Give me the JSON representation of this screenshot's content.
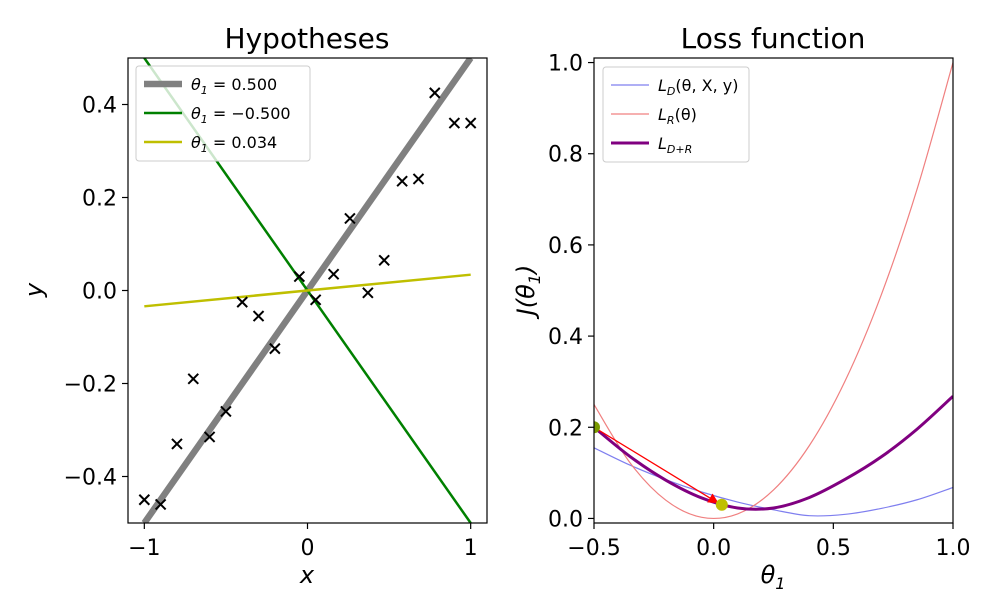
{
  "chart_data": [
    {
      "type": "scatter",
      "title": "Hypotheses",
      "xlabel": "x",
      "ylabel": "y",
      "xlim": [
        -1.1,
        1.1
      ],
      "ylim": [
        -0.5,
        0.5
      ],
      "xticks": [
        -1,
        0,
        1
      ],
      "yticks": [
        -0.4,
        -0.2,
        0.0,
        0.2,
        0.4
      ],
      "xtick_labels": [
        "−1",
        "0",
        "1"
      ],
      "ytick_labels": [
        "−0.4",
        "−0.2",
        "0.0",
        "0.2",
        "0.4"
      ],
      "legend_position": "top-left",
      "points": [
        [
          -1.0,
          -0.45
        ],
        [
          -0.9,
          -0.46
        ],
        [
          -0.8,
          -0.33
        ],
        [
          -0.7,
          -0.19
        ],
        [
          -0.6,
          -0.315
        ],
        [
          -0.5,
          -0.26
        ],
        [
          -0.4,
          -0.025
        ],
        [
          -0.3,
          -0.055
        ],
        [
          -0.2,
          -0.125
        ],
        [
          -0.05,
          0.03
        ],
        [
          0.05,
          -0.02
        ],
        [
          0.16,
          0.035
        ],
        [
          0.26,
          0.155
        ],
        [
          0.37,
          -0.005
        ],
        [
          0.47,
          0.065
        ],
        [
          0.58,
          0.235
        ],
        [
          0.68,
          0.24
        ],
        [
          0.78,
          0.425
        ],
        [
          0.9,
          0.36
        ],
        [
          1.0,
          0.36
        ]
      ],
      "series": [
        {
          "name": "θ₁ = 0.500",
          "name_main": "θ",
          "name_sub": "1",
          "name_rest": " = 0.500",
          "slope": 0.5,
          "color": "#808080",
          "width": 6.5
        },
        {
          "name": "θ₁ = −0.500",
          "name_main": "θ",
          "name_sub": "1",
          "name_rest": " = −0.500",
          "slope": -0.5,
          "color": "#008000",
          "width": 2.5
        },
        {
          "name": "θ₁ = 0.034",
          "name_main": "θ",
          "name_sub": "1",
          "name_rest": " = 0.034",
          "slope": 0.034,
          "color": "#bfbf00",
          "width": 2.5
        }
      ]
    },
    {
      "type": "line",
      "title": "Loss function",
      "xlabel": "θ",
      "xlabel_sub": "1",
      "ylabel": "J(θ₁)",
      "ylabel_main": "J(θ",
      "ylabel_sub": "1",
      "ylabel_close": ")",
      "xlim": [
        -0.5,
        1.0
      ],
      "ylim": [
        -0.01,
        1.01
      ],
      "xticks": [
        -0.5,
        0.0,
        0.5,
        1.0
      ],
      "yticks": [
        0.0,
        0.2,
        0.4,
        0.6,
        0.8,
        1.0
      ],
      "xtick_labels": [
        "−0.5",
        "0.0",
        "0.5",
        "1.0"
      ],
      "ytick_labels": [
        "0.0",
        "0.2",
        "0.4",
        "0.6",
        "0.8",
        "1.0"
      ],
      "legend_position": "top-left",
      "series": [
        {
          "name": "L_D(θ, X, y)",
          "name_main": "L",
          "name_sub": "D",
          "name_rest": "(θ, X, y)",
          "color": "#7f7fef",
          "width": 1.2,
          "x": [
            -0.5,
            -0.35,
            -0.2,
            -0.05,
            0.1,
            0.25,
            0.4,
            0.55,
            0.7,
            0.85,
            1.0
          ],
          "values": [
            0.155,
            0.117,
            0.085,
            0.058,
            0.036,
            0.019,
            0.006,
            0.009,
            0.022,
            0.041,
            0.068
          ]
        },
        {
          "name": "L_R(θ)",
          "name_main": "L",
          "name_sub": "R",
          "name_rest": "(θ)",
          "color": "#f08080",
          "width": 1.2,
          "x": [
            -0.5,
            -0.35,
            -0.2,
            -0.05,
            0.1,
            0.25,
            0.4,
            0.55,
            0.7,
            0.85,
            1.0
          ],
          "values": [
            0.25,
            0.1225,
            0.04,
            0.0025,
            0.01,
            0.0625,
            0.16,
            0.3025,
            0.49,
            0.7225,
            1.0
          ]
        },
        {
          "name": "L_{D+R}",
          "name_main": "L",
          "name_sub": "D+R",
          "name_rest": "",
          "color": "#800080",
          "width": 3.0,
          "x": [
            -0.5,
            -0.35,
            -0.2,
            -0.05,
            0.1,
            0.25,
            0.4,
            0.55,
            0.7,
            0.85,
            1.0
          ],
          "values": [
            0.2,
            0.136,
            0.084,
            0.045,
            0.023,
            0.023,
            0.046,
            0.086,
            0.135,
            0.196,
            0.268
          ]
        }
      ],
      "arrow": {
        "from": [
          -0.5,
          0.2
        ],
        "to": [
          0.034,
          0.03
        ],
        "color": "#ff0000"
      },
      "markers": [
        {
          "x": -0.5,
          "y": 0.2,
          "color": "#7a9a00"
        },
        {
          "x": 0.034,
          "y": 0.03,
          "color": "#bfbf00"
        }
      ]
    }
  ]
}
